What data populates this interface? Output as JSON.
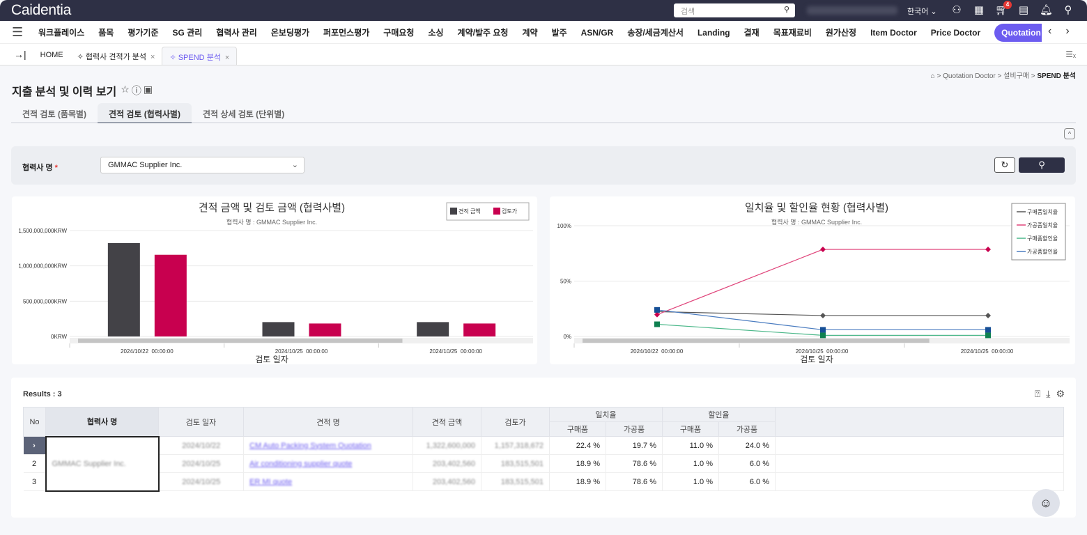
{
  "header": {
    "logo": "Caidentia",
    "search_placeholder": "검색",
    "language": "한국어",
    "cart_count": "4"
  },
  "menu": {
    "items": [
      "워크플레이스",
      "품목",
      "평가기준",
      "SG 관리",
      "협력사 관리",
      "온보딩평가",
      "퍼포먼스평가",
      "구매요청",
      "소싱",
      "계약/발주 요청",
      "계약",
      "발주",
      "ASN/GR",
      "송장/세금계산서",
      "Landing",
      "결재",
      "목표재료비",
      "원가산정",
      "Item Doctor",
      "Price Doctor",
      "Quotation Doctor"
    ]
  },
  "tabs": [
    {
      "label": "HOME"
    },
    {
      "label": "협력사 견적가 분석"
    },
    {
      "label": "SPEND 분석"
    }
  ],
  "breadcrumb": [
    "Quotation Doctor",
    "설비구매",
    "SPEND 분석"
  ],
  "page": {
    "title": "지출 분석 및 이력 보기"
  },
  "subtabs": [
    "견적 검토 (품목별)",
    "견적 검토 (협력사별)",
    "견적 상세 검토 (단위별)"
  ],
  "filter": {
    "label": "협력사 명",
    "required": "*",
    "value": "GMMAC Supplier Inc."
  },
  "chart_data": [
    {
      "type": "bar",
      "title": "견적 금액 및 검토 금액 (협력사별)",
      "subtitle": "협력사 명 : GMMAC Supplier Inc.",
      "xlabel": "검토 일자",
      "ylabel": "",
      "ylim": [
        0,
        1500000000
      ],
      "yticks": [
        {
          "v": 0,
          "label": "0KRW"
        },
        {
          "v": 500000000,
          "label": "500,000,000KRW"
        },
        {
          "v": 1000000000,
          "label": "1,000,000,000KRW"
        },
        {
          "v": 1500000000,
          "label": "1,500,000,000KRW"
        }
      ],
      "categories": [
        "2024/10/22  00:00:00",
        "2024/10/25  00:00:00",
        "2024/10/25  00:00:00"
      ],
      "series": [
        {
          "name": "견적 금액",
          "color": "#434247",
          "values": [
            1322600000,
            203402560,
            203402560
          ]
        },
        {
          "name": "검토가",
          "color": "#c8004f",
          "values": [
            1157318672,
            183515501,
            183515501
          ]
        }
      ],
      "legend": "top-right"
    },
    {
      "type": "line",
      "title": "일치율 및 할인율 현황 (협력사별)",
      "subtitle": "협력사 명 : GMMAC Supplier Inc.",
      "xlabel": "검토 일자",
      "ylim": [
        0,
        100
      ],
      "yticks": [
        {
          "v": 0,
          "label": "0%"
        },
        {
          "v": 50,
          "label": "50%"
        },
        {
          "v": 100,
          "label": "100%"
        }
      ],
      "categories": [
        "2024/10/22  00:00:00",
        "2024/10/25  00:00:00",
        "2024/10/25  00:00:00"
      ],
      "series": [
        {
          "name": "구매품일치율",
          "color": "#555555",
          "marker": "diamond",
          "values": [
            22.4,
            18.9,
            18.9
          ]
        },
        {
          "name": "가공품일치율",
          "color": "#e0457b",
          "mcolor": "#c8004f",
          "marker": "diamond",
          "values": [
            19.7,
            78.6,
            78.6
          ]
        },
        {
          "name": "구매품할인율",
          "color": "#4cb88a",
          "mcolor": "#0f8050",
          "marker": "square",
          "values": [
            11.0,
            1.0,
            1.0
          ]
        },
        {
          "name": "가공품할인율",
          "color": "#4a7cc0",
          "mcolor": "#164f96",
          "marker": "square",
          "values": [
            24.0,
            6.0,
            6.0
          ]
        }
      ],
      "legend": "top-right"
    }
  ],
  "results": {
    "label": "Results : 3",
    "headers": {
      "no": "No",
      "supplier": "협력사 명",
      "date": "검토 일자",
      "quote": "견적 명",
      "amount": "견적 금액",
      "review": "검토가",
      "match": "일치율",
      "discount": "할인율",
      "purchased": "구매품",
      "processed": "가공품"
    },
    "supplier": "GMMAC Supplier Inc.",
    "rows": [
      {
        "no": "›",
        "date": "2024/10/22",
        "quote": "CM Auto Packing System Quotation",
        "amount": "1,322,600,000",
        "review": "1,157,318,672",
        "m1": "22.4 %",
        "m2": "19.7 %",
        "d1": "11.0 %",
        "d2": "24.0 %"
      },
      {
        "no": "2",
        "date": "2024/10/25",
        "quote": "Air conditioning supplier quote",
        "amount": "203,402,560",
        "review": "183,515,501",
        "m1": "18.9 %",
        "m2": "78.6 %",
        "d1": "1.0 %",
        "d2": "6.0 %"
      },
      {
        "no": "3",
        "date": "2024/10/25",
        "quote": "ER MI quote",
        "amount": "203,402,560",
        "review": "183,515,501",
        "m1": "18.9 %",
        "m2": "78.6 %",
        "d1": "1.0 %",
        "d2": "6.0 %"
      }
    ]
  }
}
